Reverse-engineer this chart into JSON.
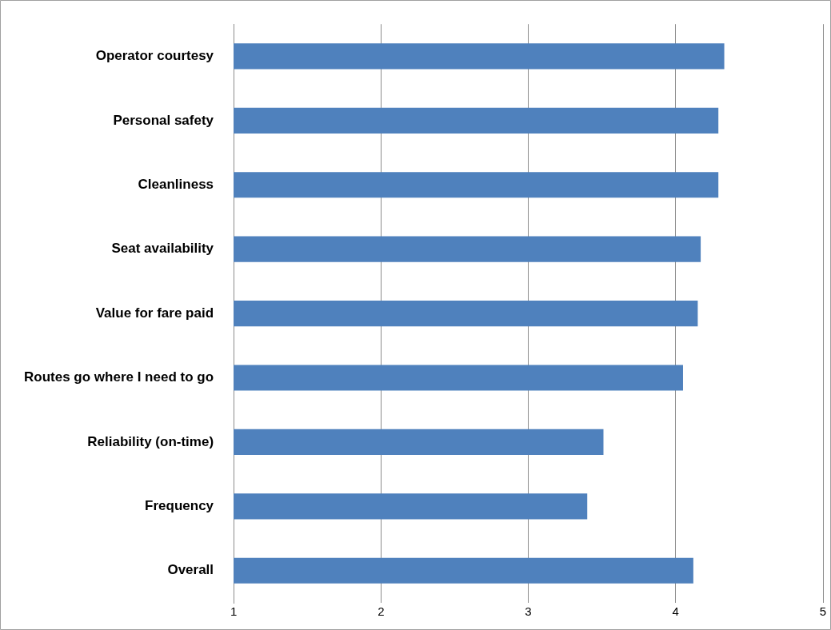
{
  "chart_data": {
    "type": "bar",
    "orientation": "horizontal",
    "categories": [
      "Operator courtesy",
      "Personal safety",
      "Cleanliness",
      "Seat availability",
      "Value for fare paid",
      "Routes go where I need to go",
      "Reliability (on-time)",
      "Frequency",
      "Overall"
    ],
    "values": [
      4.33,
      4.29,
      4.29,
      4.17,
      4.15,
      4.05,
      3.51,
      3.4,
      4.12
    ],
    "color": "#4f81bd",
    "xlim": [
      1,
      5
    ],
    "xticks": [
      1,
      2,
      3,
      4,
      5
    ],
    "grid": "x",
    "legend": false
  }
}
